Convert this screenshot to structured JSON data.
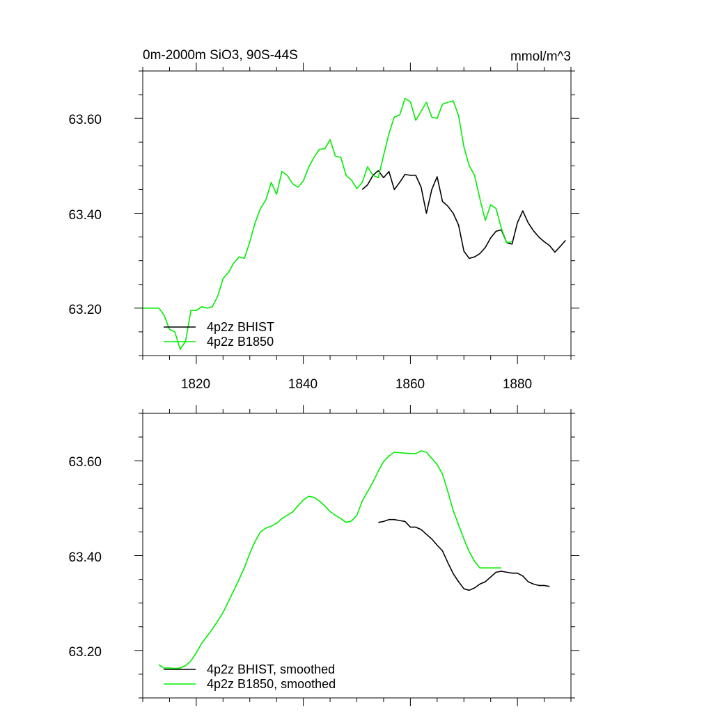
{
  "colors": {
    "bhist": "#000000",
    "b1850": "#00ee00",
    "axis": "#000000",
    "background": "#ffffff"
  },
  "chart_data": [
    {
      "type": "line",
      "title": "0m-2000m SiO3, 90S-44S",
      "units": "mmol/m^3",
      "xlabel": "",
      "ylabel": "",
      "xlim": [
        1810,
        1890
      ],
      "ylim": [
        63.1,
        63.7
      ],
      "x_ticks": [
        1820,
        1840,
        1860,
        1880
      ],
      "x_tick_labels": [
        "1820",
        "1840",
        "1860",
        "1880"
      ],
      "y_ticks": [
        63.2,
        63.4,
        63.6
      ],
      "y_tick_labels": [
        "63.20",
        "63.40",
        "63.60"
      ],
      "grid": false,
      "legend_position": "bottom-left",
      "series": [
        {
          "name": "4p2z BHIST",
          "color": "#000000",
          "x": [
            1851,
            1852,
            1853,
            1854,
            1855,
            1856,
            1857,
            1858,
            1859,
            1860,
            1861,
            1862,
            1863,
            1864,
            1865,
            1866,
            1867,
            1868,
            1869,
            1870,
            1871,
            1872,
            1873,
            1874,
            1875,
            1876,
            1877,
            1878,
            1879,
            1880,
            1881,
            1882,
            1883,
            1884,
            1885,
            1886,
            1887,
            1888,
            1889
          ],
          "values": [
            63.45,
            63.46,
            63.48,
            63.49,
            63.475,
            63.488,
            63.45,
            63.465,
            63.482,
            63.48,
            63.48,
            63.455,
            63.4,
            63.45,
            63.477,
            63.425,
            63.415,
            63.4,
            63.375,
            63.32,
            63.305,
            63.308,
            63.315,
            63.328,
            63.348,
            63.362,
            63.365,
            63.338,
            63.335,
            63.38,
            63.405,
            63.38,
            63.363,
            63.35,
            63.34,
            63.332,
            63.318,
            63.33,
            63.343
          ]
        },
        {
          "name": "4p2z B1850",
          "color": "#00ee00",
          "x": [
            1810,
            1811,
            1812,
            1813,
            1814,
            1815,
            1816,
            1817,
            1818,
            1819,
            1820,
            1821,
            1822,
            1823,
            1824,
            1825,
            1826,
            1827,
            1828,
            1829,
            1830,
            1831,
            1832,
            1833,
            1834,
            1835,
            1836,
            1837,
            1838,
            1839,
            1840,
            1841,
            1842,
            1843,
            1844,
            1845,
            1846,
            1847,
            1848,
            1849,
            1850,
            1851,
            1852,
            1853,
            1854,
            1855,
            1856,
            1857,
            1858,
            1859,
            1860,
            1861,
            1862,
            1863,
            1864,
            1865,
            1866,
            1867,
            1868,
            1869,
            1870,
            1871,
            1872,
            1873,
            1874,
            1875,
            1876,
            1877,
            1878,
            1879
          ],
          "values": [
            63.2,
            63.2,
            63.2,
            63.2,
            63.185,
            63.155,
            63.15,
            63.113,
            63.13,
            63.195,
            63.195,
            63.203,
            63.2,
            63.203,
            63.225,
            63.262,
            63.275,
            63.295,
            63.308,
            63.305,
            63.34,
            63.38,
            63.41,
            63.428,
            63.465,
            63.44,
            63.488,
            63.48,
            63.462,
            63.455,
            63.468,
            63.497,
            63.518,
            63.535,
            63.536,
            63.555,
            63.52,
            63.518,
            63.48,
            63.47,
            63.452,
            63.465,
            63.498,
            63.48,
            63.475,
            63.522,
            63.568,
            63.603,
            63.607,
            63.642,
            63.635,
            63.596,
            63.615,
            63.634,
            63.603,
            63.6,
            63.63,
            63.634,
            63.637,
            63.606,
            63.54,
            63.5,
            63.48,
            63.43,
            63.385,
            63.418,
            63.41,
            63.368,
            63.338,
            63.34
          ]
        }
      ]
    },
    {
      "type": "line",
      "title": "",
      "xlabel": "",
      "ylabel": "",
      "xlim": [
        1810,
        1890
      ],
      "ylim": [
        63.1,
        63.7
      ],
      "x_ticks": [
        1820,
        1840,
        1860,
        1880
      ],
      "y_ticks": [
        63.2,
        63.4,
        63.6
      ],
      "y_tick_labels": [
        "63.20",
        "63.40",
        "63.60"
      ],
      "grid": false,
      "legend_position": "bottom-left",
      "series": [
        {
          "name": "4p2z BHIST, smoothed",
          "color": "#000000",
          "x": [
            1854,
            1855,
            1856,
            1857,
            1858,
            1859,
            1860,
            1861,
            1862,
            1863,
            1864,
            1865,
            1866,
            1867,
            1868,
            1869,
            1870,
            1871,
            1872,
            1873,
            1874,
            1875,
            1876,
            1877,
            1878,
            1879,
            1880,
            1881,
            1882,
            1883,
            1884,
            1885,
            1886
          ],
          "values": [
            63.47,
            63.472,
            63.476,
            63.476,
            63.474,
            63.472,
            63.46,
            63.46,
            63.455,
            63.445,
            63.435,
            63.422,
            63.41,
            63.385,
            63.362,
            63.345,
            63.33,
            63.327,
            63.332,
            63.34,
            63.345,
            63.355,
            63.365,
            63.367,
            63.365,
            63.363,
            63.363,
            63.357,
            63.345,
            63.34,
            63.337,
            63.337,
            63.335
          ]
        },
        {
          "name": "4p2z B1850, smoothed",
          "color": "#00ee00",
          "x": [
            1813,
            1814,
            1815,
            1816,
            1817,
            1818,
            1819,
            1820,
            1821,
            1822,
            1823,
            1824,
            1825,
            1826,
            1827,
            1828,
            1829,
            1830,
            1831,
            1832,
            1833,
            1834,
            1835,
            1836,
            1837,
            1838,
            1839,
            1840,
            1841,
            1842,
            1843,
            1844,
            1845,
            1846,
            1847,
            1848,
            1849,
            1850,
            1851,
            1852,
            1853,
            1854,
            1855,
            1856,
            1857,
            1858,
            1859,
            1860,
            1861,
            1862,
            1863,
            1864,
            1865,
            1866,
            1867,
            1868,
            1869,
            1870,
            1871,
            1872,
            1873,
            1874,
            1875,
            1876,
            1877
          ],
          "values": [
            63.17,
            63.163,
            63.163,
            63.162,
            63.163,
            63.168,
            63.178,
            63.195,
            63.215,
            63.23,
            63.245,
            63.262,
            63.28,
            63.303,
            63.326,
            63.35,
            63.375,
            63.405,
            63.43,
            63.45,
            63.458,
            63.462,
            63.468,
            63.478,
            63.485,
            63.492,
            63.505,
            63.517,
            63.525,
            63.523,
            63.515,
            63.505,
            63.493,
            63.485,
            63.478,
            63.47,
            63.473,
            63.485,
            63.515,
            63.535,
            63.555,
            63.578,
            63.598,
            63.61,
            63.618,
            63.617,
            63.616,
            63.615,
            63.615,
            63.621,
            63.618,
            63.605,
            63.592,
            63.572,
            63.535,
            63.495,
            63.465,
            63.435,
            63.408,
            63.388,
            63.374,
            63.374,
            63.374,
            63.374,
            63.374
          ]
        }
      ]
    }
  ]
}
